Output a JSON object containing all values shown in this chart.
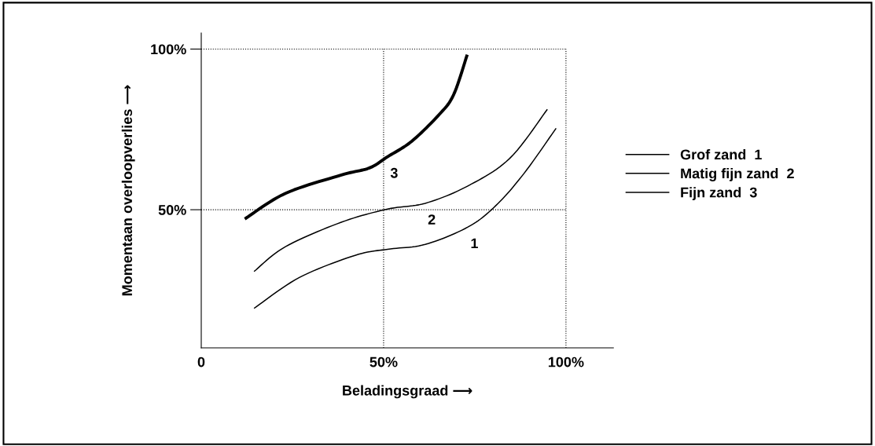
{
  "chart_data": {
    "type": "line",
    "xlabel": "Beladingsgraad ⟶",
    "ylabel": "Momentaan overloopverlies ⟶",
    "series": [
      {
        "name": "Grof zand  1",
        "color": "#000000",
        "x": [
          14.6,
          26.9,
          42.2,
          51.1,
          61.4,
          73.1,
          80.7,
          88.5,
          97.2
        ],
        "values": [
          19.4,
          28.9,
          35.8,
          37.7,
          39.2,
          44.6,
          51.2,
          61.3,
          75.2
        ]
      },
      {
        "name": "Matig fijn zand  2",
        "color": "#000000",
        "x": [
          14.6,
          23.1,
          38.4,
          51.1,
          61.4,
          73.1,
          84.6,
          94.8
        ],
        "values": [
          30.9,
          38.5,
          46.1,
          50.2,
          52,
          57.4,
          66,
          81.1
        ]
      },
      {
        "name": "Fijn zand  3",
        "color": "#000000",
        "x": [
          12.3,
          23.1,
          38.4,
          46.1,
          51.1,
          57.7,
          65.3,
          69.2,
          72.8
        ],
        "values": [
          47.4,
          55.1,
          60.8,
          63,
          66.5,
          71.3,
          79.7,
          85.8,
          97.8
        ]
      }
    ],
    "annotations": [
      "1",
      "2",
      "3"
    ],
    "xlim": [
      0,
      113
    ],
    "ylim": [
      7,
      105
    ],
    "xticks": [
      {
        "value": 0,
        "label": "0"
      },
      {
        "value": 50,
        "label": "50%"
      },
      {
        "value": 100,
        "label": "100%"
      }
    ],
    "yticks": [
      {
        "value": 50,
        "label": "50%"
      },
      {
        "value": 100,
        "label": "100%"
      }
    ],
    "legend": "right",
    "marker": "none",
    "line_style": "solid",
    "grid": true
  }
}
